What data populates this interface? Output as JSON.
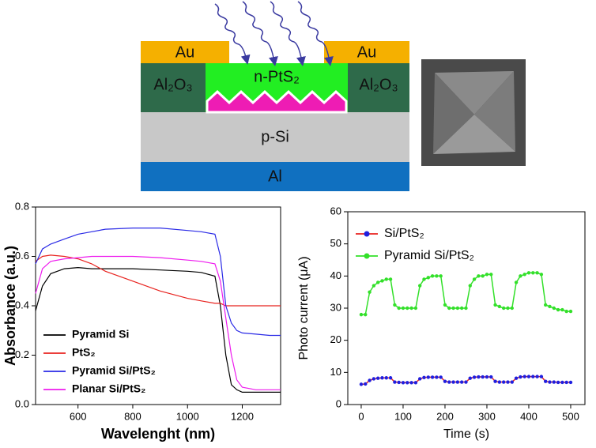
{
  "diagram": {
    "au_left": "Au",
    "au_right": "Au",
    "al2o3_left": "Al₂O₃",
    "al2o3_right": "Al₂O₃",
    "n_pts2": "n-PtS₂",
    "p_si": "p-Si",
    "al": "Al"
  },
  "chart_data": [
    {
      "type": "line",
      "x_label": "Wavelenght (nm)",
      "y_label": "Absorbance (a.u.)",
      "legend": "lower left",
      "x": [
        445,
        470,
        500,
        550,
        600,
        650,
        700,
        800,
        900,
        1000,
        1050,
        1100,
        1120,
        1140,
        1160,
        1180,
        1200,
        1250,
        1300,
        1340
      ],
      "series": [
        {
          "name": "Pyramid Si",
          "color": "#000000",
          "values": [
            0.38,
            0.48,
            0.53,
            0.55,
            0.555,
            0.55,
            0.55,
            0.55,
            0.545,
            0.54,
            0.535,
            0.52,
            0.4,
            0.2,
            0.08,
            0.06,
            0.05,
            0.05,
            0.05,
            0.05
          ]
        },
        {
          "name": "PtS₂",
          "color": "#e8231f",
          "values": [
            0.58,
            0.6,
            0.605,
            0.6,
            0.59,
            0.57,
            0.54,
            0.5,
            0.46,
            0.43,
            0.42,
            0.41,
            0.41,
            0.4,
            0.4,
            0.4,
            0.4,
            0.4,
            0.4,
            0.4
          ]
        },
        {
          "name": "Pyramid Si/PtS₂",
          "color": "#2a2ae6",
          "values": [
            0.57,
            0.63,
            0.65,
            0.67,
            0.69,
            0.7,
            0.71,
            0.715,
            0.715,
            0.705,
            0.7,
            0.69,
            0.6,
            0.4,
            0.33,
            0.3,
            0.29,
            0.285,
            0.28,
            0.28
          ]
        },
        {
          "name": "Planar Si/PtS₂",
          "color": "#ee1cee",
          "values": [
            0.45,
            0.55,
            0.58,
            0.59,
            0.595,
            0.6,
            0.6,
            0.6,
            0.595,
            0.585,
            0.58,
            0.57,
            0.5,
            0.35,
            0.2,
            0.1,
            0.07,
            0.06,
            0.06,
            0.06
          ]
        }
      ],
      "xlim": [
        445,
        1340
      ],
      "xticks": [
        600,
        800,
        1000,
        1200
      ],
      "ylim": [
        0,
        0.8
      ],
      "yticks": [
        {
          "value": 0,
          "label": "0.0"
        },
        0.2,
        0.4,
        0.6,
        0.8
      ],
      "markers": false
    },
    {
      "type": "line",
      "x_label": "Time (s)",
      "y_label": "Photo current (μA)",
      "legend": "upper left",
      "x": [
        0,
        10,
        20,
        30,
        40,
        50,
        60,
        70,
        80,
        90,
        100,
        110,
        120,
        130,
        140,
        150,
        160,
        170,
        180,
        190,
        200,
        210,
        220,
        230,
        240,
        250,
        260,
        270,
        280,
        290,
        300,
        310,
        320,
        330,
        340,
        350,
        360,
        370,
        380,
        390,
        400,
        410,
        420,
        430,
        440,
        450,
        460,
        470,
        480,
        490,
        500
      ],
      "series": [
        {
          "name": "Si/PtS₂",
          "color": "#1f1fe0",
          "line_color": "#e8231f",
          "values": [
            6.3,
            6.4,
            7.5,
            8,
            8.2,
            8.3,
            8.3,
            8.3,
            7,
            6.9,
            6.8,
            6.8,
            6.8,
            6.8,
            8,
            8.4,
            8.5,
            8.5,
            8.5,
            8.5,
            7.2,
            7,
            7,
            7,
            7,
            7,
            8.2,
            8.5,
            8.6,
            8.6,
            8.6,
            8.6,
            7.2,
            7,
            7,
            7,
            7,
            8.2,
            8.6,
            8.7,
            8.7,
            8.7,
            8.7,
            8.7,
            7.2,
            7,
            7,
            6.9,
            6.9,
            6.9,
            6.9
          ]
        },
        {
          "name": "Pyramid Si/PtS₂",
          "color": "#33e02a",
          "line_color": "#33e02a",
          "values": [
            28,
            28,
            35,
            37,
            38,
            38.5,
            39,
            39,
            31,
            30,
            30,
            30,
            30,
            30,
            37,
            39,
            39.5,
            40,
            40,
            40,
            31,
            30,
            30,
            30,
            30,
            30,
            37,
            39,
            40,
            40,
            40.5,
            40.5,
            31,
            30.5,
            30,
            30,
            30,
            38,
            40,
            40.5,
            41,
            41,
            41,
            40.5,
            31,
            30.5,
            30,
            29.5,
            29.5,
            29,
            29
          ]
        }
      ],
      "xlim": [
        -32,
        534
      ],
      "xticks": [
        0,
        100,
        200,
        300,
        400,
        500
      ],
      "ylim": [
        0,
        60
      ],
      "yticks": [
        0,
        10,
        20,
        30,
        40,
        50,
        60
      ],
      "markers": true
    }
  ]
}
